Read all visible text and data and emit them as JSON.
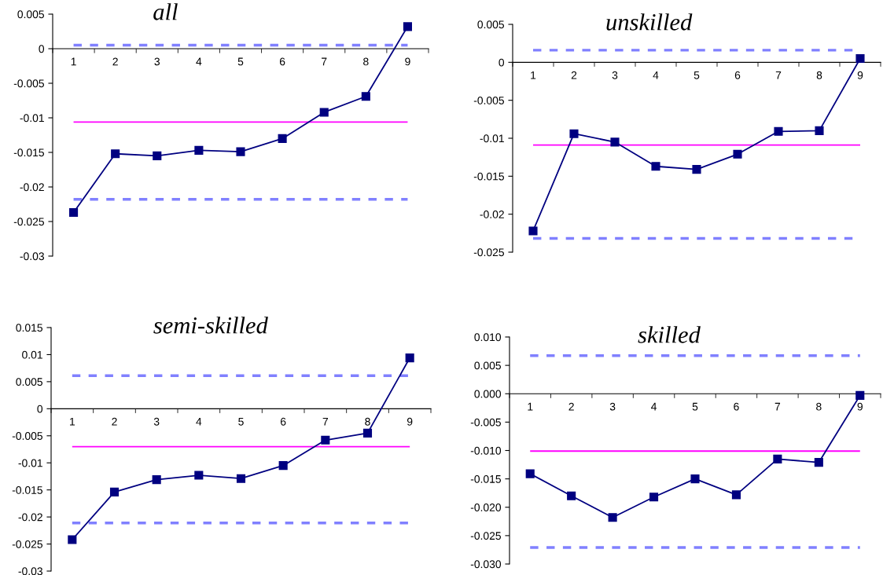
{
  "chart_data": [
    {
      "type": "line",
      "title": "all",
      "categories": [
        "1",
        "2",
        "3",
        "4",
        "5",
        "6",
        "7",
        "8",
        "9"
      ],
      "series": [
        {
          "color": "#000080",
          "values": [
            -0.0237,
            -0.0152,
            -0.0155,
            -0.0147,
            -0.0149,
            -0.013,
            -0.0092,
            -0.0069,
            0.0032
          ]
        }
      ],
      "ylim": [
        -0.03,
        0.005
      ],
      "yticks": [
        -0.03,
        -0.025,
        -0.02,
        -0.015,
        -0.01,
        -0.005,
        0,
        0.005
      ],
      "ref_lines": [
        {
          "axis": "y",
          "value": 0.0005,
          "color": "#8080ff",
          "line_style": "dashed"
        },
        {
          "axis": "y",
          "value": -0.0106,
          "color": "#ff00ff",
          "line_style": "solid"
        },
        {
          "axis": "y",
          "value": -0.0218,
          "color": "#8080ff",
          "line_style": "dashed"
        }
      ],
      "marker": "square",
      "line_style": "solid"
    },
    {
      "type": "line",
      "title": "unskilled",
      "categories": [
        "1",
        "2",
        "3",
        "4",
        "5",
        "6",
        "7",
        "8",
        "9"
      ],
      "series": [
        {
          "color": "#000080",
          "values": [
            -0.0222,
            -0.0094,
            -0.0105,
            -0.0137,
            -0.0141,
            -0.0121,
            -0.0091,
            -0.009,
            0.0005
          ]
        }
      ],
      "ylim": [
        -0.025,
        0.005
      ],
      "yticks": [
        -0.025,
        -0.02,
        -0.015,
        -0.01,
        -0.005,
        0,
        0.005
      ],
      "ref_lines": [
        {
          "axis": "y",
          "value": 0.0016,
          "color": "#8080ff",
          "line_style": "dashed"
        },
        {
          "axis": "y",
          "value": -0.0109,
          "color": "#ff00ff",
          "line_style": "solid"
        },
        {
          "axis": "y",
          "value": -0.0232,
          "color": "#8080ff",
          "line_style": "dashed"
        }
      ],
      "marker": "square",
      "line_style": "solid"
    },
    {
      "type": "line",
      "title": "semi-skilled",
      "categories": [
        "1",
        "2",
        "3",
        "4",
        "5",
        "6",
        "7",
        "8",
        "9"
      ],
      "series": [
        {
          "color": "#000080",
          "values": [
            -0.0242,
            -0.0154,
            -0.0131,
            -0.0123,
            -0.0129,
            -0.0105,
            -0.0058,
            -0.0045,
            0.0094
          ]
        }
      ],
      "ylim": [
        -0.03,
        0.015
      ],
      "yticks": [
        -0.03,
        -0.025,
        -0.02,
        -0.015,
        -0.01,
        -0.005,
        0,
        0.005,
        0.01,
        0.015
      ],
      "ref_lines": [
        {
          "axis": "y",
          "value": 0.0061,
          "color": "#8080ff",
          "line_style": "dashed"
        },
        {
          "axis": "y",
          "value": -0.007,
          "color": "#ff00ff",
          "line_style": "solid"
        },
        {
          "axis": "y",
          "value": -0.0211,
          "color": "#8080ff",
          "line_style": "dashed"
        }
      ],
      "marker": "square",
      "line_style": "solid"
    },
    {
      "type": "line",
      "title": "skilled",
      "categories": [
        "1",
        "2",
        "3",
        "4",
        "5",
        "6",
        "7",
        "8",
        "9"
      ],
      "series": [
        {
          "color": "#000080",
          "values": [
            -0.0141,
            -0.018,
            -0.0218,
            -0.0182,
            -0.015,
            -0.0178,
            -0.0115,
            -0.0121,
            -0.0003
          ]
        }
      ],
      "ylim": [
        -0.03,
        0.01
      ],
      "yticks": [
        {
          "value": -0.03,
          "label": "-0.030"
        },
        {
          "value": -0.025,
          "label": "-0.025"
        },
        {
          "value": -0.02,
          "label": "-0.020"
        },
        {
          "value": -0.015,
          "label": "-0.015"
        },
        {
          "value": -0.01,
          "label": "-0.010"
        },
        {
          "value": -0.005,
          "label": "-0.005"
        },
        {
          "value": 0,
          "label": "0.000"
        },
        {
          "value": 0.005,
          "label": "0.005"
        },
        {
          "value": 0.01,
          "label": "0.010"
        }
      ],
      "ref_lines": [
        {
          "axis": "y",
          "value": 0.0067,
          "color": "#8080ff",
          "line_style": "dashed"
        },
        {
          "axis": "y",
          "value": -0.0101,
          "color": "#ff00ff",
          "line_style": "solid"
        },
        {
          "axis": "y",
          "value": -0.0271,
          "color": "#8080ff",
          "line_style": "dashed"
        }
      ],
      "marker": "square",
      "line_style": "solid"
    }
  ]
}
